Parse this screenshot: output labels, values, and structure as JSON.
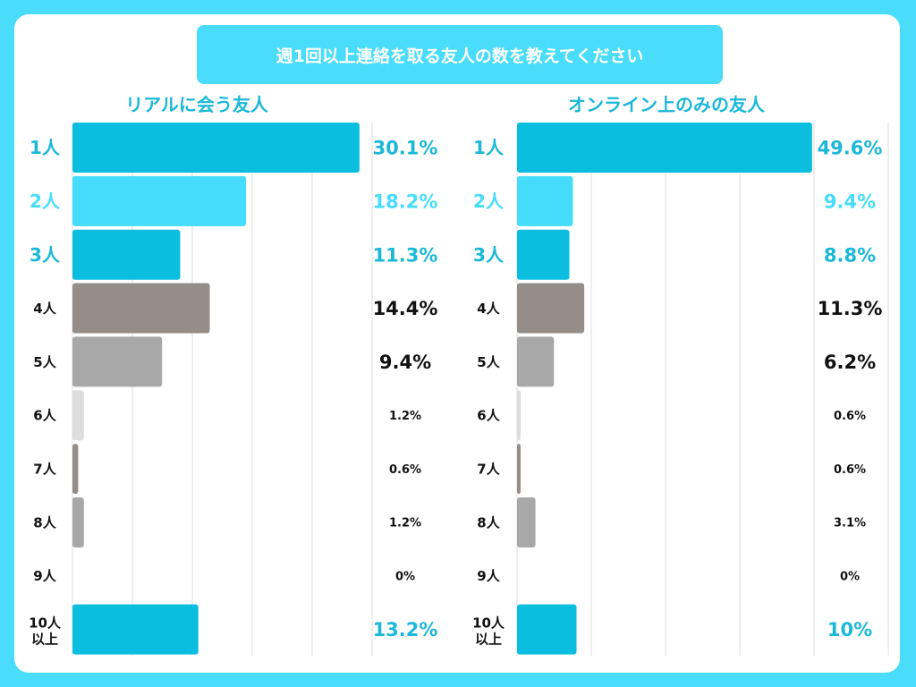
{
  "title": "週1回以上連絡を取る友人の数を教えてください",
  "chart_data": [
    {
      "type": "bar",
      "orientation": "horizontal",
      "title": "リアルに会う友人",
      "categories": [
        "1人",
        "2人",
        "3人",
        "4人",
        "5人",
        "6人",
        "7人",
        "8人",
        "9人",
        "10人\n以上"
      ],
      "values": [
        30.1,
        18.2,
        11.3,
        14.4,
        9.4,
        1.2,
        0.6,
        1.2,
        0,
        13.2
      ],
      "value_labels": [
        "30.1%",
        "18.2%",
        "11.3%",
        "14.4%",
        "9.4%",
        "1.2%",
        "0.6%",
        "1.2%",
        "0%",
        "13.2%"
      ],
      "xlim": [
        0,
        50
      ],
      "grid": true
    },
    {
      "type": "bar",
      "orientation": "horizontal",
      "title": "オンライン上のみの友人",
      "categories": [
        "1人",
        "2人",
        "3人",
        "4人",
        "5人",
        "6人",
        "7人",
        "8人",
        "9人",
        "10人\n以上"
      ],
      "values": [
        49.6,
        9.4,
        8.8,
        11.3,
        6.2,
        0.6,
        0.6,
        3.1,
        0,
        10
      ],
      "value_labels": [
        "49.6%",
        "9.4%",
        "8.8%",
        "11.3%",
        "6.2%",
        "0.6%",
        "0.6%",
        "3.1%",
        "0%",
        "10%"
      ],
      "xlim": [
        0,
        50
      ],
      "grid": true
    }
  ],
  "colors": {
    "background": "#49dcfb",
    "card": "#ffffff",
    "bars": [
      "#0bbedf",
      "#45ddfb",
      "#0bbedf",
      "#968d88",
      "#a8a8a8",
      "#dddddd",
      "#968d88",
      "#a8a8a8",
      "#a8a8a8",
      "#0bbedf"
    ],
    "category_text": [
      "#1bb8d8",
      "#45ddfb",
      "#1bb8d8",
      "#111111",
      "#111111",
      "#111111",
      "#111111",
      "#111111",
      "#111111",
      "#111111"
    ],
    "value_text": [
      "#1bb8d8",
      "#45ddfb",
      "#1bb8d8",
      "#111111",
      "#111111",
      "#111111",
      "#111111",
      "#111111",
      "#111111",
      "#1bb8d8"
    ],
    "grid": "#dddddd"
  }
}
